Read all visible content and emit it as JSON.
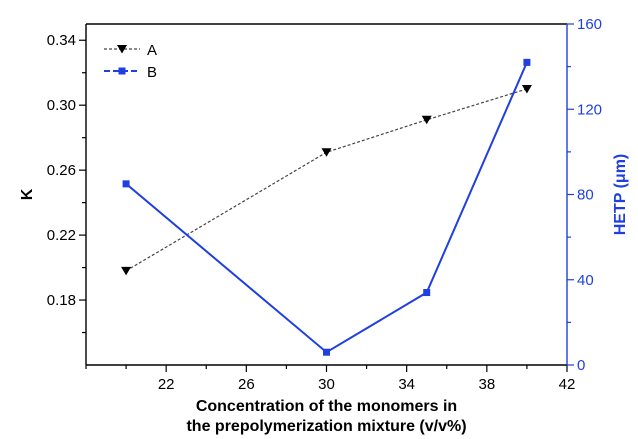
{
  "chart_data": {
    "type": "line",
    "xlabel": [
      "Concentration of the monomers in",
      "the prepolymerization mixture (v/v%)"
    ],
    "ylabel": "K",
    "y2label": "HETP (μm)",
    "xlim": [
      18,
      42
    ],
    "ylim": [
      0.14,
      0.35
    ],
    "y2lim": [
      0,
      160
    ],
    "x_ticks": [
      22,
      26,
      30,
      34,
      38,
      42
    ],
    "y_ticks": [
      0.18,
      0.22,
      0.26,
      0.3,
      0.34
    ],
    "y2_ticks": [
      0,
      40,
      80,
      120,
      160
    ],
    "legend_position": "top-left",
    "series": [
      {
        "name": "A",
        "axis": "left",
        "color": "#444444",
        "line_style": "dashed",
        "marker": "down-triangle",
        "x": [
          20,
          30,
          35,
          40
        ],
        "y": [
          0.198,
          0.271,
          0.291,
          0.31
        ]
      },
      {
        "name": "B",
        "axis": "right",
        "color": "#1f3fe0",
        "line_style": "solid",
        "marker": "square",
        "x": [
          20,
          30,
          35,
          40
        ],
        "y": [
          85,
          6,
          34,
          142
        ]
      }
    ]
  }
}
